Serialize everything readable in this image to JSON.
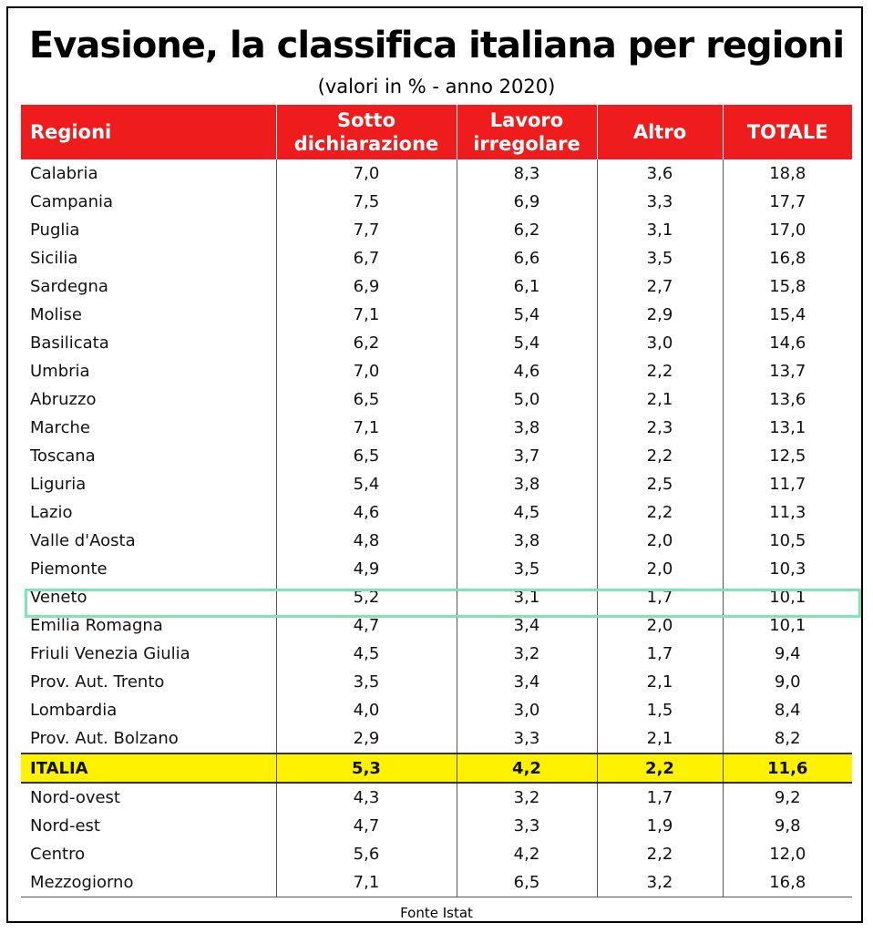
{
  "title": "Evasione, la classifica italiana per regioni",
  "subtitle": "(valori in % - anno 2020)",
  "headers": {
    "regioni": "Regioni",
    "sotto_1": "Sotto",
    "sotto_2": "dichiarazione",
    "lavoro_1": "Lavoro",
    "lavoro_2": "irregolare",
    "altro": "Altro",
    "totale": "TOTALE"
  },
  "rows": [
    {
      "regione": "Calabria",
      "sotto": "7,0",
      "lavoro": "8,3",
      "altro": "3,6",
      "totale": "18,8"
    },
    {
      "regione": "Campania",
      "sotto": "7,5",
      "lavoro": "6,9",
      "altro": "3,3",
      "totale": "17,7"
    },
    {
      "regione": "Puglia",
      "sotto": "7,7",
      "lavoro": "6,2",
      "altro": "3,1",
      "totale": "17,0"
    },
    {
      "regione": "Sicilia",
      "sotto": "6,7",
      "lavoro": "6,6",
      "altro": "3,5",
      "totale": "16,8"
    },
    {
      "regione": "Sardegna",
      "sotto": "6,9",
      "lavoro": "6,1",
      "altro": "2,7",
      "totale": "15,8"
    },
    {
      "regione": "Molise",
      "sotto": "7,1",
      "lavoro": "5,4",
      "altro": "2,9",
      "totale": "15,4"
    },
    {
      "regione": "Basilicata",
      "sotto": "6,2",
      "lavoro": "5,4",
      "altro": "3,0",
      "totale": "14,6"
    },
    {
      "regione": "Umbria",
      "sotto": "7,0",
      "lavoro": "4,6",
      "altro": "2,2",
      "totale": "13,7"
    },
    {
      "regione": "Abruzzo",
      "sotto": "6,5",
      "lavoro": "5,0",
      "altro": "2,1",
      "totale": "13,6"
    },
    {
      "regione": "Marche",
      "sotto": "7,1",
      "lavoro": "3,8",
      "altro": "2,3",
      "totale": "13,1"
    },
    {
      "regione": "Toscana",
      "sotto": "6,5",
      "lavoro": "3,7",
      "altro": "2,2",
      "totale": "12,5"
    },
    {
      "regione": "Liguria",
      "sotto": "5,4",
      "lavoro": "3,8",
      "altro": "2,5",
      "totale": "11,7"
    },
    {
      "regione": "Lazio",
      "sotto": "4,6",
      "lavoro": "4,5",
      "altro": "2,2",
      "totale": "11,3"
    },
    {
      "regione": "Valle d'Aosta",
      "sotto": "4,8",
      "lavoro": "3,8",
      "altro": "2,0",
      "totale": "10,5"
    },
    {
      "regione": "Piemonte",
      "sotto": "4,9",
      "lavoro": "3,5",
      "altro": "2,0",
      "totale": "10,3"
    },
    {
      "regione": "Veneto",
      "sotto": "5,2",
      "lavoro": "3,1",
      "altro": "1,7",
      "totale": "10,1"
    },
    {
      "regione": "Emilia Romagna",
      "sotto": "4,7",
      "lavoro": "3,4",
      "altro": "2,0",
      "totale": "10,1"
    },
    {
      "regione": "Friuli Venezia Giulia",
      "sotto": "4,5",
      "lavoro": "3,2",
      "altro": "1,7",
      "totale": "9,4"
    },
    {
      "regione": "Prov. Aut. Trento",
      "sotto": "3,5",
      "lavoro": "3,4",
      "altro": "2,1",
      "totale": "9,0"
    },
    {
      "regione": "Lombardia",
      "sotto": "4,0",
      "lavoro": "3,0",
      "altro": "1,5",
      "totale": "8,4"
    },
    {
      "regione": "Prov. Aut. Bolzano",
      "sotto": "2,9",
      "lavoro": "3,3",
      "altro": "2,1",
      "totale": "8,2"
    }
  ],
  "italia": {
    "regione": "ITALIA",
    "sotto": "5,3",
    "lavoro": "4,2",
    "altro": "2,2",
    "totale": "11,6"
  },
  "macro": [
    {
      "regione": "Nord-ovest",
      "sotto": "4,3",
      "lavoro": "3,2",
      "altro": "1,7",
      "totale": "9,2"
    },
    {
      "regione": "Nord-est",
      "sotto": "4,7",
      "lavoro": "3,3",
      "altro": "1,9",
      "totale": "9,8"
    },
    {
      "regione": "Centro",
      "sotto": "5,6",
      "lavoro": "4,2",
      "altro": "2,2",
      "totale": "12,0"
    },
    {
      "regione": "Mezzogiorno",
      "sotto": "7,1",
      "lavoro": "6,5",
      "altro": "3,2",
      "totale": "16,8"
    }
  ],
  "source": "Fonte Istat",
  "colors": {
    "header_bg": "#ee1c1c",
    "italia_bg": "#fff200",
    "highlight": "#7ee6b4"
  }
}
